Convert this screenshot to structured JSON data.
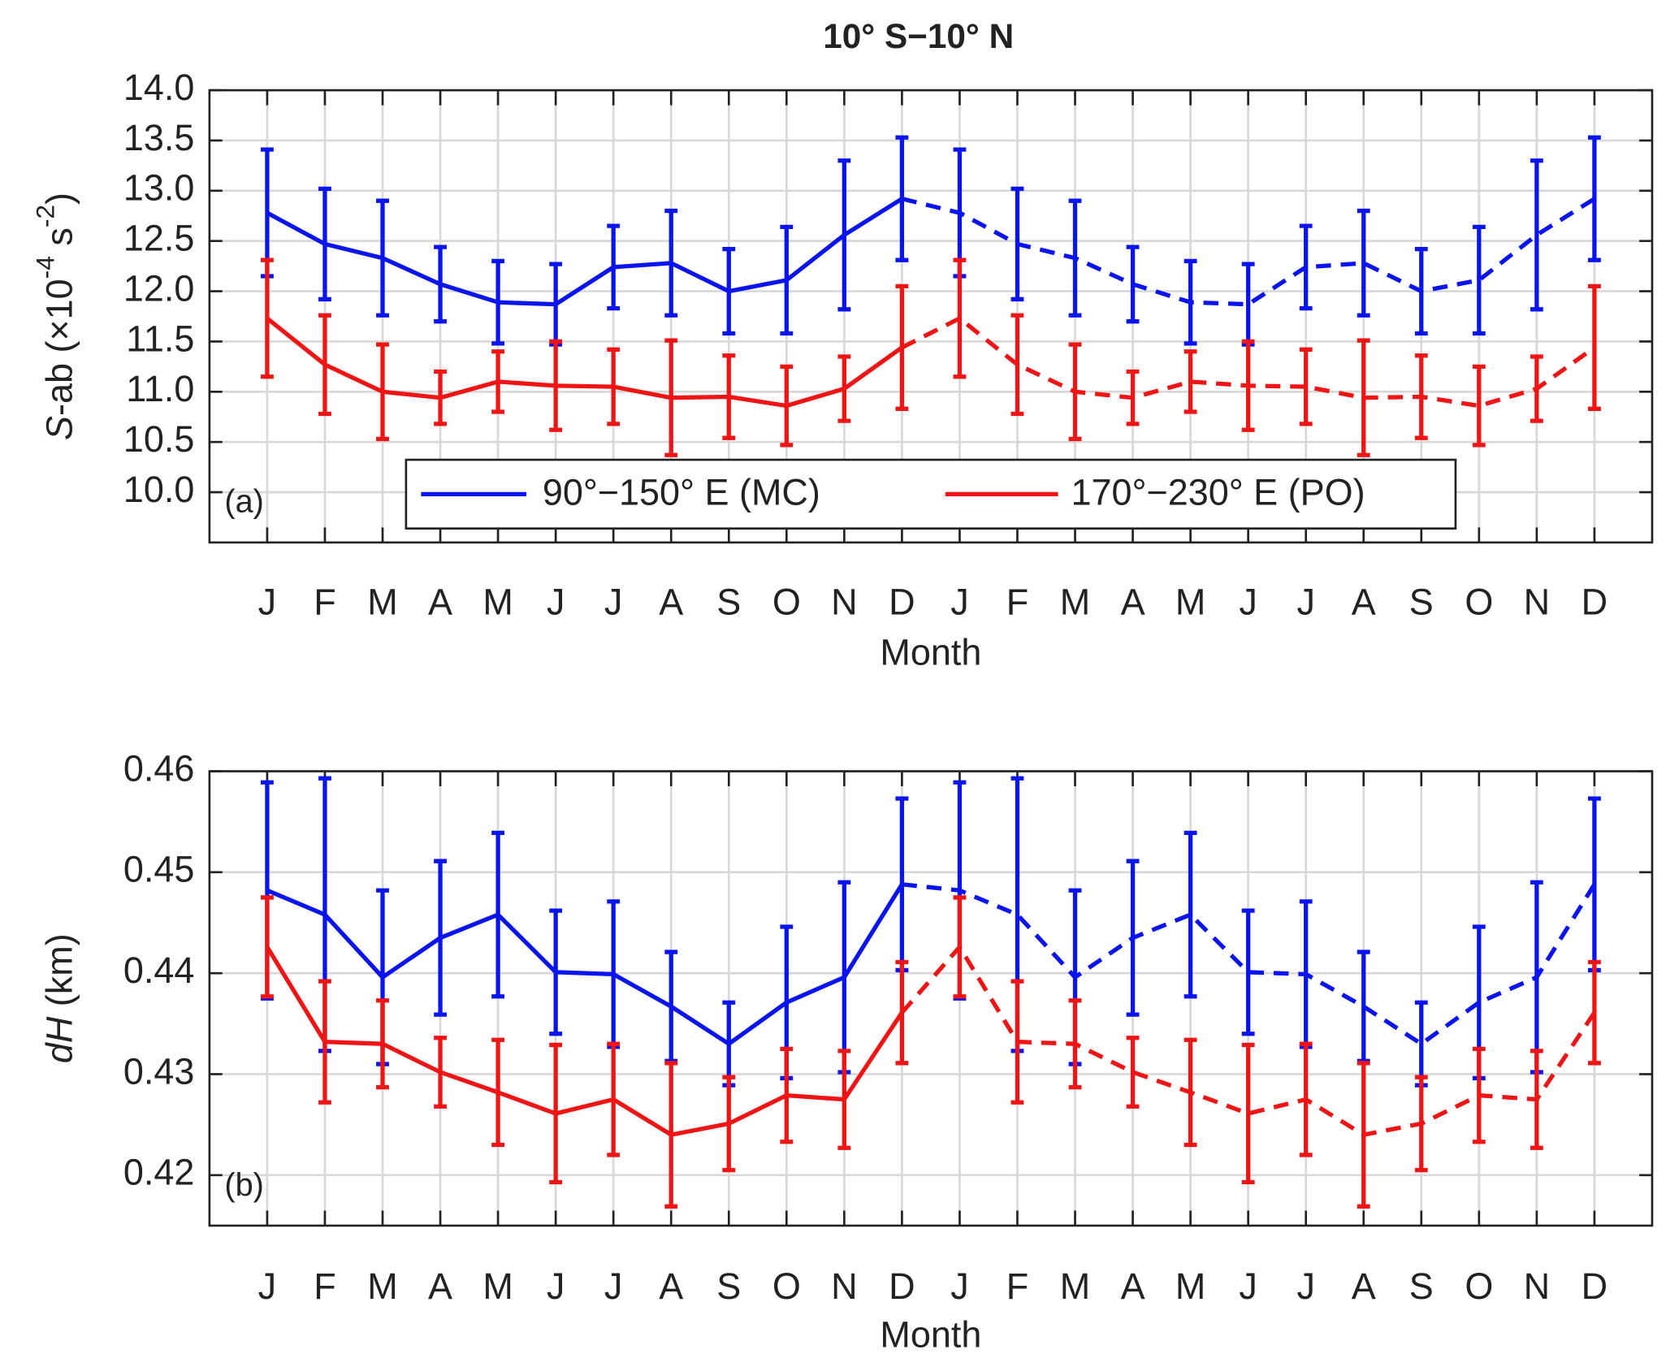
{
  "title": "10° S−10° N",
  "chart_data": [
    {
      "type": "line",
      "panel_label": "(a)",
      "ylabel_parts": [
        "S",
        "-ab (×10",
        "-4",
        " s",
        "-2",
        ")"
      ],
      "ylabel_styles": [
        "italic",
        "normal",
        "super",
        "normal",
        "super",
        "normal"
      ],
      "xlabel": "Month",
      "categories": [
        "J",
        "F",
        "M",
        "A",
        "M",
        "J",
        "J",
        "A",
        "S",
        "O",
        "N",
        "D",
        "J",
        "F",
        "M",
        "A",
        "M",
        "J",
        "J",
        "A",
        "S",
        "O",
        "N",
        "D"
      ],
      "linestyles": [
        "solid",
        "solid",
        "solid",
        "solid",
        "solid",
        "solid",
        "solid",
        "solid",
        "solid",
        "solid",
        "solid",
        "solid",
        "dashed",
        "dashed",
        "dashed",
        "dashed",
        "dashed",
        "dashed",
        "dashed",
        "dashed",
        "dashed",
        "dashed",
        "dashed",
        "dashed"
      ],
      "ylim": [
        9.5,
        14.0
      ],
      "yticks": [
        {
          "value": 10,
          "label": "10.0"
        },
        10.5,
        {
          "value": 11,
          "label": "11.0"
        },
        11.5,
        {
          "value": 12,
          "label": "12.0"
        },
        12.5,
        {
          "value": 13,
          "label": "13.0"
        },
        13.5,
        {
          "value": 14,
          "label": "14.0"
        }
      ],
      "grid": true,
      "legend": true,
      "series": [
        {
          "name": "90°−150° E (MC)",
          "color": "#0a14f0",
          "values": [
            12.78,
            12.47,
            12.33,
            12.07,
            11.89,
            11.87,
            12.24,
            12.28,
            12.0,
            12.11,
            12.56,
            12.92,
            12.78,
            12.47,
            12.33,
            12.07,
            11.89,
            11.87,
            12.24,
            12.28,
            12.0,
            12.11,
            12.56,
            12.92
          ],
          "errors": [
            0.63,
            0.55,
            0.57,
            0.37,
            0.41,
            0.4,
            0.41,
            0.52,
            0.42,
            0.53,
            0.74,
            0.61,
            0.63,
            0.55,
            0.57,
            0.37,
            0.41,
            0.4,
            0.41,
            0.52,
            0.42,
            0.53,
            0.74,
            0.61
          ]
        },
        {
          "name": "170°−230° E (PO)",
          "color": "#f01414",
          "values": [
            11.73,
            11.27,
            11.0,
            10.94,
            11.1,
            11.06,
            11.05,
            10.94,
            10.95,
            10.86,
            11.03,
            11.44,
            11.73,
            11.27,
            11.0,
            10.94,
            11.1,
            11.06,
            11.05,
            10.94,
            10.95,
            10.86,
            11.03,
            11.44
          ],
          "errors": [
            0.58,
            0.49,
            0.47,
            0.26,
            0.3,
            0.44,
            0.37,
            0.57,
            0.41,
            0.39,
            0.32,
            0.61,
            0.58,
            0.49,
            0.47,
            0.26,
            0.3,
            0.44,
            0.37,
            0.57,
            0.41,
            0.39,
            0.32,
            0.61
          ]
        }
      ]
    },
    {
      "type": "line",
      "panel_label": "(b)",
      "ylabel_parts": [
        "dH",
        " (km)"
      ],
      "ylabel_styles": [
        "italic",
        "normal"
      ],
      "xlabel": "Month",
      "categories": [
        "J",
        "F",
        "M",
        "A",
        "M",
        "J",
        "J",
        "A",
        "S",
        "O",
        "N",
        "D",
        "J",
        "F",
        "M",
        "A",
        "M",
        "J",
        "J",
        "A",
        "S",
        "O",
        "N",
        "D"
      ],
      "linestyles": [
        "solid",
        "solid",
        "solid",
        "solid",
        "solid",
        "solid",
        "solid",
        "solid",
        "solid",
        "solid",
        "solid",
        "solid",
        "dashed",
        "dashed",
        "dashed",
        "dashed",
        "dashed",
        "dashed",
        "dashed",
        "dashed",
        "dashed",
        "dashed",
        "dashed",
        "dashed"
      ],
      "ylim": [
        0.415,
        0.46
      ],
      "yticks": [
        0.42,
        0.43,
        0.44,
        0.45,
        0.46
      ],
      "grid": true,
      "legend": false,
      "series": [
        {
          "color": "#0a14f0",
          "values": [
            0.4482,
            0.4458,
            0.4396,
            0.4435,
            0.4458,
            0.4401,
            0.4399,
            0.4367,
            0.433,
            0.4371,
            0.4396,
            0.4488,
            0.4482,
            0.4458,
            0.4396,
            0.4435,
            0.4458,
            0.4401,
            0.4399,
            0.4367,
            0.433,
            0.4371,
            0.4396,
            0.4488
          ],
          "errors": [
            0.0107,
            0.0135,
            0.0086,
            0.0076,
            0.0081,
            0.0061,
            0.0072,
            0.0054,
            0.0041,
            0.0075,
            0.0094,
            0.0085,
            0.0107,
            0.0135,
            0.0086,
            0.0076,
            0.0081,
            0.0061,
            0.0072,
            0.0054,
            0.0041,
            0.0075,
            0.0094,
            0.0085
          ]
        },
        {
          "color": "#f01414",
          "values": [
            0.4426,
            0.4332,
            0.433,
            0.4302,
            0.4282,
            0.4261,
            0.4275,
            0.424,
            0.4251,
            0.4279,
            0.4275,
            0.4361,
            0.4426,
            0.4332,
            0.433,
            0.4302,
            0.4282,
            0.4261,
            0.4275,
            0.424,
            0.4251,
            0.4279,
            0.4275,
            0.4361
          ],
          "errors": [
            0.0049,
            0.006,
            0.0043,
            0.0034,
            0.0052,
            0.0068,
            0.0055,
            0.0071,
            0.0046,
            0.0046,
            0.0048,
            0.005,
            0.0049,
            0.006,
            0.0043,
            0.0034,
            0.0052,
            0.0068,
            0.0055,
            0.0071,
            0.0046,
            0.0046,
            0.0048,
            0.005
          ]
        }
      ]
    }
  ]
}
